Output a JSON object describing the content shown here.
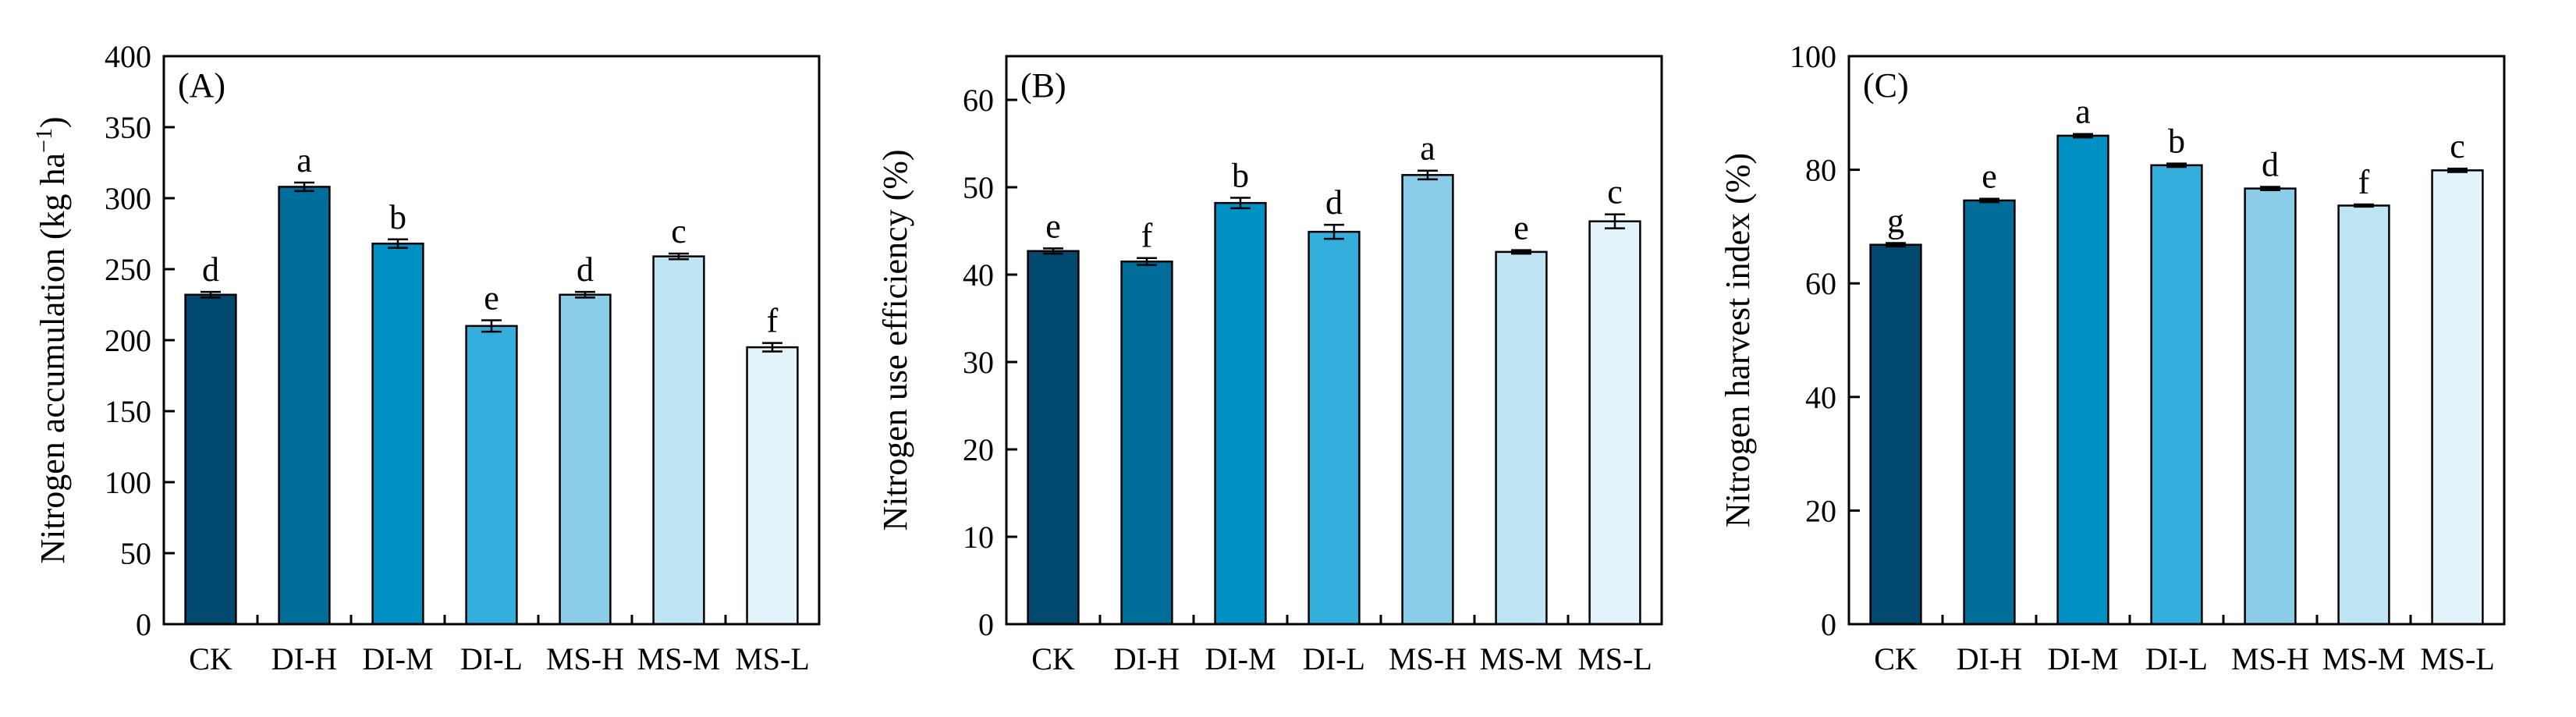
{
  "colors": [
    "#00496F",
    "#006D9A",
    "#0090C4",
    "#34AEDC",
    "#8BCCE8",
    "#BFE4F4",
    "#E3F3FA"
  ],
  "chart_data": [
    {
      "type": "bar",
      "panel": "(A)",
      "ylabel": "Nitrogen accumulation (kg ha",
      "ylabel_sup": "−1",
      "ylabel_end": ")",
      "ylim": [
        0,
        400
      ],
      "yticks": [
        0,
        50,
        100,
        150,
        200,
        250,
        300,
        350,
        400
      ],
      "categories": [
        "CK",
        "DI-H",
        "DI-M",
        "DI-L",
        "MS-H",
        "MS-M",
        "MS-L"
      ],
      "values": [
        232,
        308,
        268,
        210,
        232,
        259,
        195
      ],
      "errors": [
        2,
        3,
        3,
        4,
        2,
        2,
        3
      ],
      "letters": [
        "d",
        "a",
        "b",
        "e",
        "d",
        "c",
        "f"
      ]
    },
    {
      "type": "bar",
      "panel": "(B)",
      "ylabel": "Nitrogen use efficiency (%)",
      "ylabel_sup": "",
      "ylabel_end": "",
      "ylim": [
        0,
        65
      ],
      "yticks": [
        0,
        10,
        20,
        30,
        40,
        50,
        60
      ],
      "categories": [
        "CK",
        "DI-H",
        "DI-M",
        "DI-L",
        "MS-H",
        "MS-M",
        "MS-L"
      ],
      "values": [
        42.7,
        41.5,
        48.2,
        44.9,
        51.4,
        42.6,
        46.1
      ],
      "errors": [
        0.3,
        0.4,
        0.6,
        0.8,
        0.5,
        0.2,
        0.8
      ],
      "letters": [
        "e",
        "f",
        "b",
        "d",
        "a",
        "e",
        "c"
      ]
    },
    {
      "type": "bar",
      "panel": "(C)",
      "ylabel": "Nitrogen harvest index (%)",
      "ylabel_sup": "",
      "ylabel_end": "",
      "ylim": [
        0,
        100
      ],
      "yticks": [
        0,
        20,
        40,
        60,
        80,
        100
      ],
      "categories": [
        "CK",
        "DI-H",
        "DI-M",
        "DI-L",
        "MS-H",
        "MS-M",
        "MS-L"
      ],
      "values": [
        66.8,
        74.6,
        86.0,
        80.8,
        76.7,
        73.7,
        79.9
      ],
      "errors": [
        0.3,
        0.3,
        0.3,
        0.3,
        0.3,
        0.2,
        0.3
      ],
      "letters": [
        "g",
        "e",
        "a",
        "b",
        "d",
        "f",
        "c"
      ]
    }
  ]
}
